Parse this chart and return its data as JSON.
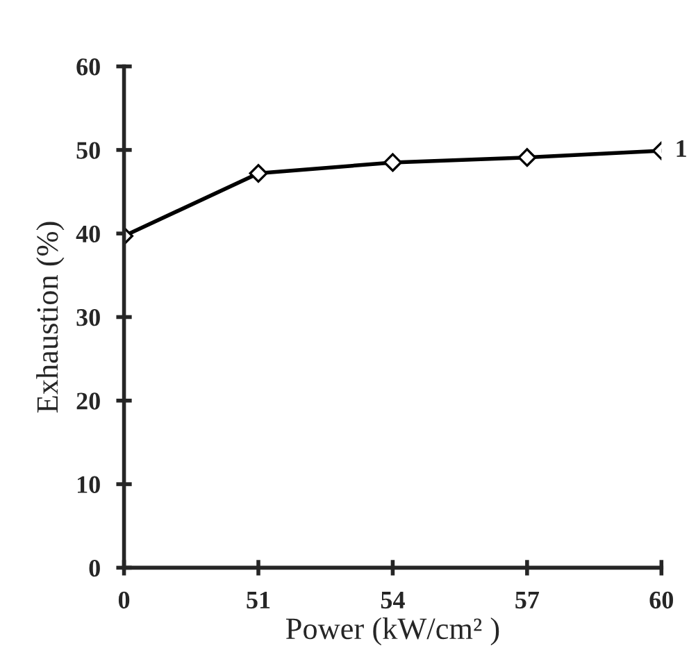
{
  "chart_data": {
    "type": "line",
    "xlabel": "Power (kW/cm² )",
    "ylabel": "Exhaustion (%)",
    "categories": [
      "0",
      "51",
      "54",
      "57",
      "60"
    ],
    "series": [
      {
        "name": "1",
        "color": "#000000",
        "values": [
          39.7,
          47.2,
          48.5,
          49.1,
          49.9
        ]
      }
    ],
    "ylim": [
      0,
      60
    ],
    "yticks": [
      0,
      10,
      20,
      30,
      40,
      50,
      60
    ],
    "grid": false,
    "legend": false,
    "marker": "diamond",
    "line_style": "solid"
  }
}
